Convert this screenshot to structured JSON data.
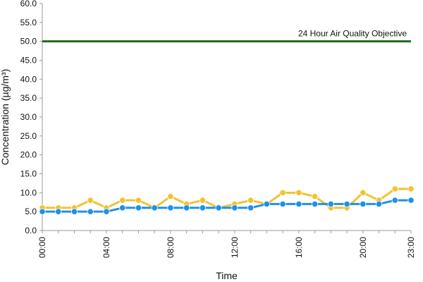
{
  "chart_data": {
    "type": "line",
    "xlabel": "Time",
    "ylabel": "Concentration (µg/m³)",
    "ylim": [
      0,
      60
    ],
    "y_ticks": [
      "0.0",
      "5.0",
      "10.0",
      "15.0",
      "20.0",
      "25.0",
      "30.0",
      "35.0",
      "40.0",
      "45.0",
      "50.0",
      "55.0",
      "60.0"
    ],
    "x_tick_labels": [
      "00:00",
      "04:00",
      "08:00",
      "12:00",
      "16:00",
      "20:00",
      "23:00"
    ],
    "x_tick_hours": [
      0,
      4,
      8,
      12,
      16,
      20,
      23
    ],
    "x_hours": [
      0,
      1,
      2,
      3,
      4,
      5,
      6,
      7,
      8,
      9,
      10,
      11,
      12,
      13,
      14,
      15,
      16,
      17,
      18,
      19,
      20,
      21,
      22,
      23
    ],
    "grid": false,
    "objective": {
      "label": "24 Hour Air Quality Objective",
      "value": 50,
      "color": "#1e6b1e"
    },
    "series": [
      {
        "color": "#f2c230",
        "values": [
          6,
          6,
          6,
          8,
          6,
          8,
          8,
          6,
          9,
          7,
          8,
          6,
          7,
          8,
          7,
          10,
          10,
          9,
          6,
          6,
          10,
          8,
          11,
          11
        ]
      },
      {
        "color": "#1e90e8",
        "values": [
          5,
          5,
          5,
          5,
          5,
          6,
          6,
          6,
          6,
          6,
          6,
          6,
          6,
          6,
          7,
          7,
          7,
          7,
          7,
          7,
          7,
          7,
          8,
          8
        ]
      }
    ]
  }
}
